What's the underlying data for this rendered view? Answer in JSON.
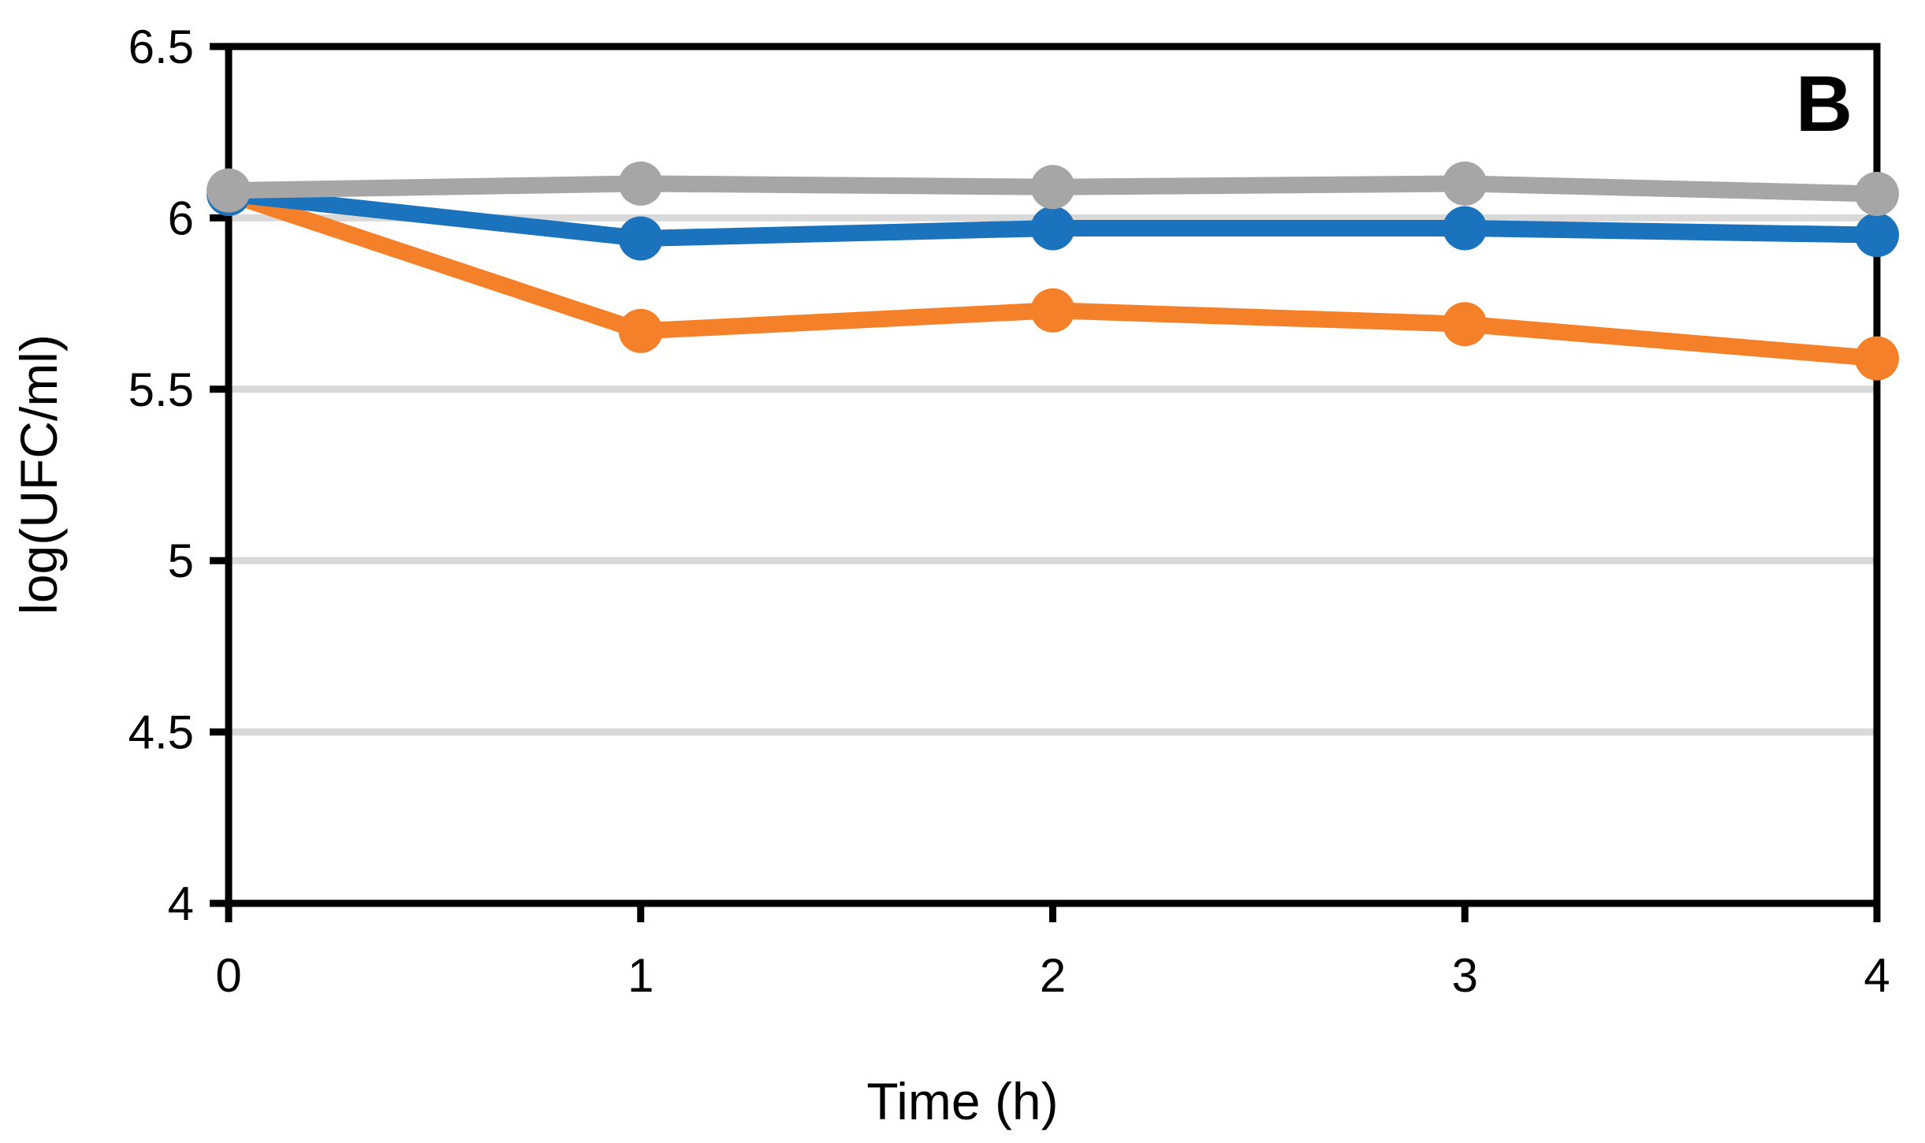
{
  "chart_data": {
    "type": "line",
    "title": "",
    "panel_label": "B",
    "xlabel": "Time (h)",
    "ylabel": "log(UFC/ml)",
    "x": [
      0,
      1,
      2,
      3,
      4
    ],
    "xtick_labels": [
      "0",
      "1",
      "2",
      "3",
      "4"
    ],
    "ytick_values": [
      6.5,
      6,
      5.5,
      5,
      4.5,
      4
    ],
    "ytick_labels": [
      "6.5",
      "6",
      "5.5",
      "5",
      "4.5",
      "4"
    ],
    "xlim": [
      0,
      4
    ],
    "ylim": [
      4,
      6.5
    ],
    "grid": "horizontal",
    "gridline_values": [
      6,
      5.5,
      5,
      4.5
    ],
    "legend_position": "none",
    "series": [
      {
        "name": "gray-series",
        "color": "#A6A6A6",
        "values": [
          6.08,
          6.1,
          6.09,
          6.1,
          6.07
        ]
      },
      {
        "name": "blue-series",
        "color": "#1B73BE",
        "values": [
          6.07,
          5.94,
          5.97,
          5.97,
          5.95
        ]
      },
      {
        "name": "orange-series",
        "color": "#F5802A",
        "values": [
          6.07,
          5.67,
          5.73,
          5.69,
          5.59
        ]
      }
    ],
    "styles": {
      "gridline_color": "#D9D9D9",
      "axis_color": "#000000",
      "marker_radius": 28,
      "line_width": 21
    }
  }
}
